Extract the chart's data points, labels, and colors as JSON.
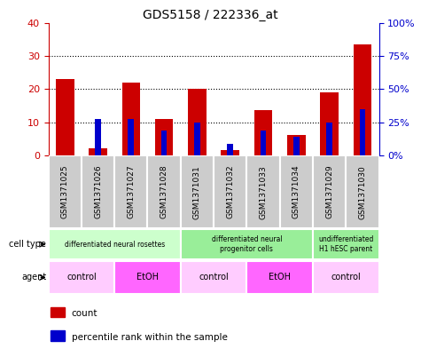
{
  "title": "GDS5158 / 222336_at",
  "samples": [
    "GSM1371025",
    "GSM1371026",
    "GSM1371027",
    "GSM1371028",
    "GSM1371031",
    "GSM1371032",
    "GSM1371033",
    "GSM1371034",
    "GSM1371029",
    "GSM1371030"
  ],
  "counts": [
    23,
    2,
    22,
    11,
    20,
    1.5,
    13.5,
    6,
    19,
    33.5
  ],
  "percentile_ranks_left": [
    0,
    11,
    11,
    7.5,
    10,
    3.5,
    7.5,
    5.5,
    10,
    14
  ],
  "ylim_left": [
    0,
    40
  ],
  "ylim_right": [
    0,
    100
  ],
  "yticks_left": [
    0,
    10,
    20,
    30,
    40
  ],
  "yticks_right": [
    0,
    25,
    50,
    75,
    100
  ],
  "yticklabels_left": [
    "0",
    "10",
    "20",
    "30",
    "40"
  ],
  "yticklabels_right": [
    "0%",
    "25%",
    "50%",
    "75%",
    "100%"
  ],
  "bar_color_red": "#cc0000",
  "bar_color_blue": "#0000cc",
  "cell_type_groups": [
    {
      "label": "differentiated neural rosettes",
      "start": 0,
      "end": 4,
      "color": "#ccffcc"
    },
    {
      "label": "differentiated neural\nprogenitor cells",
      "start": 4,
      "end": 8,
      "color": "#99ee99"
    },
    {
      "label": "undifferentiated\nH1 hESC parent",
      "start": 8,
      "end": 10,
      "color": "#99ee99"
    }
  ],
  "agent_groups": [
    {
      "label": "control",
      "start": 0,
      "end": 2,
      "color": "#ffccff"
    },
    {
      "label": "EtOH",
      "start": 2,
      "end": 4,
      "color": "#ff66ff"
    },
    {
      "label": "control",
      "start": 4,
      "end": 6,
      "color": "#ffccff"
    },
    {
      "label": "EtOH",
      "start": 6,
      "end": 8,
      "color": "#ff66ff"
    },
    {
      "label": "control",
      "start": 8,
      "end": 10,
      "color": "#ffccff"
    }
  ],
  "sample_bg_color": "#cccccc",
  "left_axis_color": "#cc0000",
  "right_axis_color": "#0000cc",
  "red_bar_width": 0.55,
  "blue_bar_width": 0.18
}
